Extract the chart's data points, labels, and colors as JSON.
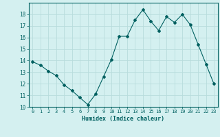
{
  "x": [
    0,
    1,
    2,
    3,
    4,
    5,
    6,
    7,
    8,
    9,
    10,
    11,
    12,
    13,
    14,
    15,
    16,
    17,
    18,
    19,
    20,
    21,
    22,
    23
  ],
  "y": [
    13.9,
    13.6,
    13.1,
    12.7,
    11.9,
    11.4,
    10.8,
    10.2,
    11.1,
    12.6,
    14.1,
    16.1,
    16.1,
    17.5,
    18.4,
    17.4,
    16.6,
    17.8,
    17.3,
    18.0,
    17.1,
    15.4,
    13.7,
    12.0
  ],
  "line_color": "#006060",
  "marker": "D",
  "marker_size": 2,
  "bg_color": "#d4f0f0",
  "grid_color": "#b8dcdc",
  "xlabel": "Humidex (Indice chaleur)",
  "xlabel_color": "#006060",
  "tick_color": "#006060",
  "ylim": [
    10,
    19
  ],
  "xlim": [
    -0.5,
    23.5
  ],
  "yticks": [
    10,
    11,
    12,
    13,
    14,
    15,
    16,
    17,
    18
  ],
  "xticks": [
    0,
    1,
    2,
    3,
    4,
    5,
    6,
    7,
    8,
    9,
    10,
    11,
    12,
    13,
    14,
    15,
    16,
    17,
    18,
    19,
    20,
    21,
    22,
    23
  ],
  "spine_color": "#006060"
}
